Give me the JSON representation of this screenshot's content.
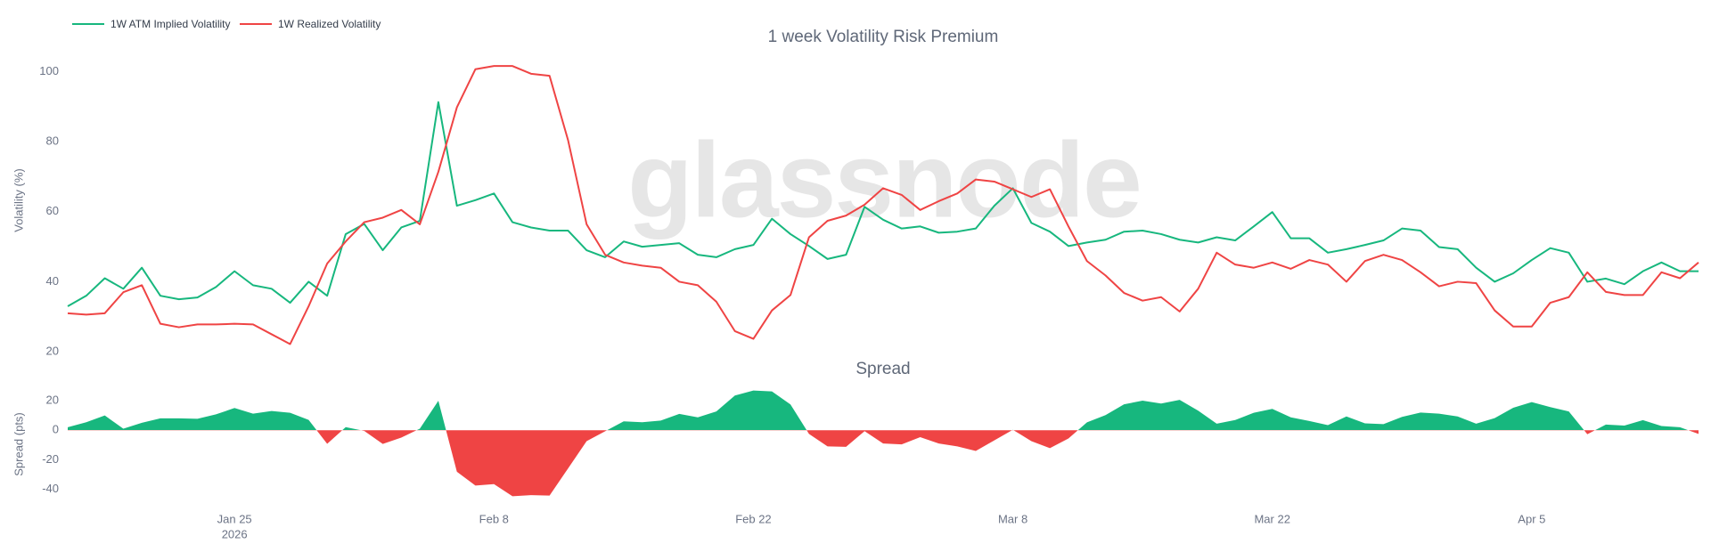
{
  "chart_data": [
    {
      "type": "line",
      "title": "1 week Volatility Risk Premium",
      "ylabel": "Volatility (%)",
      "watermark": "glassnode",
      "x": [
        "2026-01-16",
        "2026-01-17",
        "2026-01-18",
        "2026-01-19",
        "2026-01-20",
        "2026-01-21",
        "2026-01-22",
        "2026-01-23",
        "2026-01-24",
        "2026-01-25",
        "2026-01-26",
        "2026-01-27",
        "2026-01-28",
        "2026-01-29",
        "2026-01-30",
        "2026-01-31",
        "2026-02-01",
        "2026-02-02",
        "2026-02-03",
        "2026-02-04",
        "2026-02-05",
        "2026-02-06",
        "2026-02-07",
        "2026-02-08",
        "2026-02-09",
        "2026-02-10",
        "2026-02-11",
        "2026-02-12",
        "2026-02-13",
        "2026-02-14",
        "2026-02-15",
        "2026-02-16",
        "2026-02-17",
        "2026-02-18",
        "2026-02-19",
        "2026-02-20",
        "2026-02-21",
        "2026-02-22",
        "2026-02-23",
        "2026-02-24",
        "2026-02-25",
        "2026-02-26",
        "2026-02-27",
        "2026-02-28",
        "2026-03-01",
        "2026-03-02",
        "2026-03-03",
        "2026-03-04",
        "2026-03-05",
        "2026-03-06",
        "2026-03-07",
        "2026-03-08",
        "2026-03-09",
        "2026-03-10",
        "2026-03-11",
        "2026-03-12",
        "2026-03-13",
        "2026-03-14",
        "2026-03-15",
        "2026-03-16",
        "2026-03-17",
        "2026-03-18",
        "2026-03-19",
        "2026-03-20",
        "2026-03-21",
        "2026-03-22",
        "2026-03-23",
        "2026-03-24",
        "2026-03-25",
        "2026-03-26",
        "2026-03-27",
        "2026-03-28",
        "2026-03-29",
        "2026-03-30",
        "2026-03-31",
        "2026-04-01",
        "2026-04-02",
        "2026-04-03",
        "2026-04-04",
        "2026-04-05",
        "2026-04-06",
        "2026-04-07",
        "2026-04-08",
        "2026-04-09",
        "2026-04-10",
        "2026-04-11",
        "2026-04-12",
        "2026-04-13",
        "2026-04-14"
      ],
      "xlim": [
        "2026-01-16",
        "2026-04-14"
      ],
      "ylim": [
        18.5,
        108
      ],
      "yticks": [
        20,
        40,
        60,
        80,
        100
      ],
      "series": [
        {
          "name": "1W ATM Implied Volatility",
          "color": "#17b77e",
          "values": [
            33,
            36,
            41,
            38,
            44,
            36,
            35,
            35.5,
            38.5,
            43,
            39,
            38,
            34,
            40,
            36,
            53.6,
            56.5,
            49,
            55.5,
            57.4,
            91.3,
            61.7,
            63.3,
            65.2,
            57,
            55.5,
            54.6,
            54.6,
            49,
            47,
            51.5,
            50,
            50.5,
            51,
            47.7,
            47,
            49.3,
            50.5,
            58,
            53.6,
            50.2,
            46.5,
            47.7,
            61.4,
            57.7,
            55.2,
            55.8,
            54,
            54.3,
            55.2,
            61.7,
            66.7,
            56.8,
            54.3,
            50.2,
            51.2,
            52,
            54.3,
            54.6,
            53.6,
            52,
            51.2,
            52.7,
            51.8,
            55.8,
            59.9,
            52.4,
            52.4,
            48.3,
            49.3,
            50.5,
            51.8,
            55.2,
            54.6,
            49.9,
            49.3,
            44,
            40,
            42.4,
            46.2,
            49.6,
            48.3,
            40,
            40.9,
            39.3,
            43,
            45.5,
            43,
            43
          ]
        },
        {
          "name": "1W Realized Volatility",
          "color": "#ef4444",
          "values": [
            31,
            30.6,
            31,
            37,
            39,
            28,
            27,
            27.8,
            27.8,
            28,
            27.8,
            25,
            22.2,
            33,
            45.2,
            51.5,
            57,
            58.3,
            60.5,
            56.4,
            71.4,
            89.8,
            100.7,
            101.6,
            101.6,
            99.4,
            98.8,
            80.4,
            56.4,
            47.7,
            45.5,
            44.6,
            44,
            40,
            39,
            34.3,
            25.9,
            23.7,
            31.8,
            36.2,
            52.7,
            57.4,
            58.9,
            62,
            66.7,
            64.8,
            60.5,
            63,
            65.2,
            69.2,
            68.6,
            66.4,
            64.2,
            66.4,
            55.8,
            45.9,
            41.8,
            36.8,
            34.6,
            35.6,
            31.5,
            38,
            48.3,
            44.9,
            44,
            45.5,
            43.7,
            46.2,
            44.9,
            40,
            45.9,
            47.7,
            46.2,
            42.7,
            38.7,
            40,
            39.6,
            31.8,
            27.2,
            27.2,
            34,
            35.6,
            42.7,
            37.1,
            36.2,
            36.2,
            42.7,
            41,
            45.5
          ]
        }
      ]
    },
    {
      "type": "area",
      "title": "Spread",
      "ylabel": "Spread (pts)",
      "x": [
        "2026-01-16",
        "2026-01-17",
        "2026-01-18",
        "2026-01-19",
        "2026-01-20",
        "2026-01-21",
        "2026-01-22",
        "2026-01-23",
        "2026-01-24",
        "2026-01-25",
        "2026-01-26",
        "2026-01-27",
        "2026-01-28",
        "2026-01-29",
        "2026-01-30",
        "2026-01-31",
        "2026-02-01",
        "2026-02-02",
        "2026-02-03",
        "2026-02-04",
        "2026-02-05",
        "2026-02-06",
        "2026-02-07",
        "2026-02-08",
        "2026-02-09",
        "2026-02-10",
        "2026-02-11",
        "2026-02-12",
        "2026-02-13",
        "2026-02-14",
        "2026-02-15",
        "2026-02-16",
        "2026-02-17",
        "2026-02-18",
        "2026-02-19",
        "2026-02-20",
        "2026-02-21",
        "2026-02-22",
        "2026-02-23",
        "2026-02-24",
        "2026-02-25",
        "2026-02-26",
        "2026-02-27",
        "2026-02-28",
        "2026-03-01",
        "2026-03-02",
        "2026-03-03",
        "2026-03-04",
        "2026-03-05",
        "2026-03-06",
        "2026-03-07",
        "2026-03-08",
        "2026-03-09",
        "2026-03-10",
        "2026-03-11",
        "2026-03-12",
        "2026-03-13",
        "2026-03-14",
        "2026-03-15",
        "2026-03-16",
        "2026-03-17",
        "2026-03-18",
        "2026-03-19",
        "2026-03-20",
        "2026-03-21",
        "2026-03-22",
        "2026-03-23",
        "2026-03-24",
        "2026-03-25",
        "2026-03-26",
        "2026-03-27",
        "2026-03-28",
        "2026-03-29",
        "2026-03-30",
        "2026-03-31",
        "2026-04-01",
        "2026-04-02",
        "2026-04-03",
        "2026-04-04",
        "2026-04-05",
        "2026-04-06",
        "2026-04-07",
        "2026-04-08",
        "2026-04-09",
        "2026-04-10",
        "2026-04-11",
        "2026-04-12",
        "2026-04-13",
        "2026-04-14"
      ],
      "xlim": [
        "2026-01-16",
        "2026-04-14"
      ],
      "xticks": [
        {
          "value": "2026-01-25",
          "label": "Jan 25"
        },
        {
          "value": "2026-02-08",
          "label": "Feb 8"
        },
        {
          "value": "2026-02-22",
          "label": "Feb 22"
        },
        {
          "value": "2026-03-08",
          "label": "Mar 8"
        },
        {
          "value": "2026-03-22",
          "label": "Mar 22"
        },
        {
          "value": "2026-04-05",
          "label": "Apr 5"
        }
      ],
      "x_year": "2026",
      "ylim": [
        -48,
        29
      ],
      "yticks": [
        -40,
        -20,
        0,
        20
      ],
      "positive_color": "#17b77e",
      "negative_color": "#ef4444",
      "values": [
        2,
        5.4,
        10,
        1,
        5,
        8,
        8,
        7.7,
        10.7,
        15,
        11.2,
        13,
        11.8,
        7,
        -9.2,
        2.1,
        -0.5,
        -9.3,
        -5,
        1,
        19.9,
        -28.1,
        -37.4,
        -36.4,
        -44.6,
        -43.9,
        -44.2,
        -25.8,
        -7.4,
        -0.7,
        6,
        5.4,
        6.5,
        11,
        8.7,
        12.7,
        23.4,
        26.8,
        26.2,
        17.4,
        -2.5,
        -10.9,
        -11.2,
        -0.6,
        -9,
        -9.6,
        -4.7,
        -9,
        -10.9,
        -14,
        -6.9,
        0.3,
        -7.4,
        -12.1,
        -5.6,
        5.3,
        10.2,
        17.5,
        20,
        18,
        20.5,
        13.2,
        4.4,
        6.9,
        11.8,
        14.4,
        8.7,
        6.2,
        3.4,
        9.3,
        4.6,
        4.1,
        9,
        11.9,
        11.2,
        9.3,
        4.4,
        8.2,
        15.2,
        19,
        15.6,
        12.7,
        -2.7,
        3.8,
        3.1,
        6.8,
        2.8,
        2,
        -2.5
      ]
    }
  ]
}
